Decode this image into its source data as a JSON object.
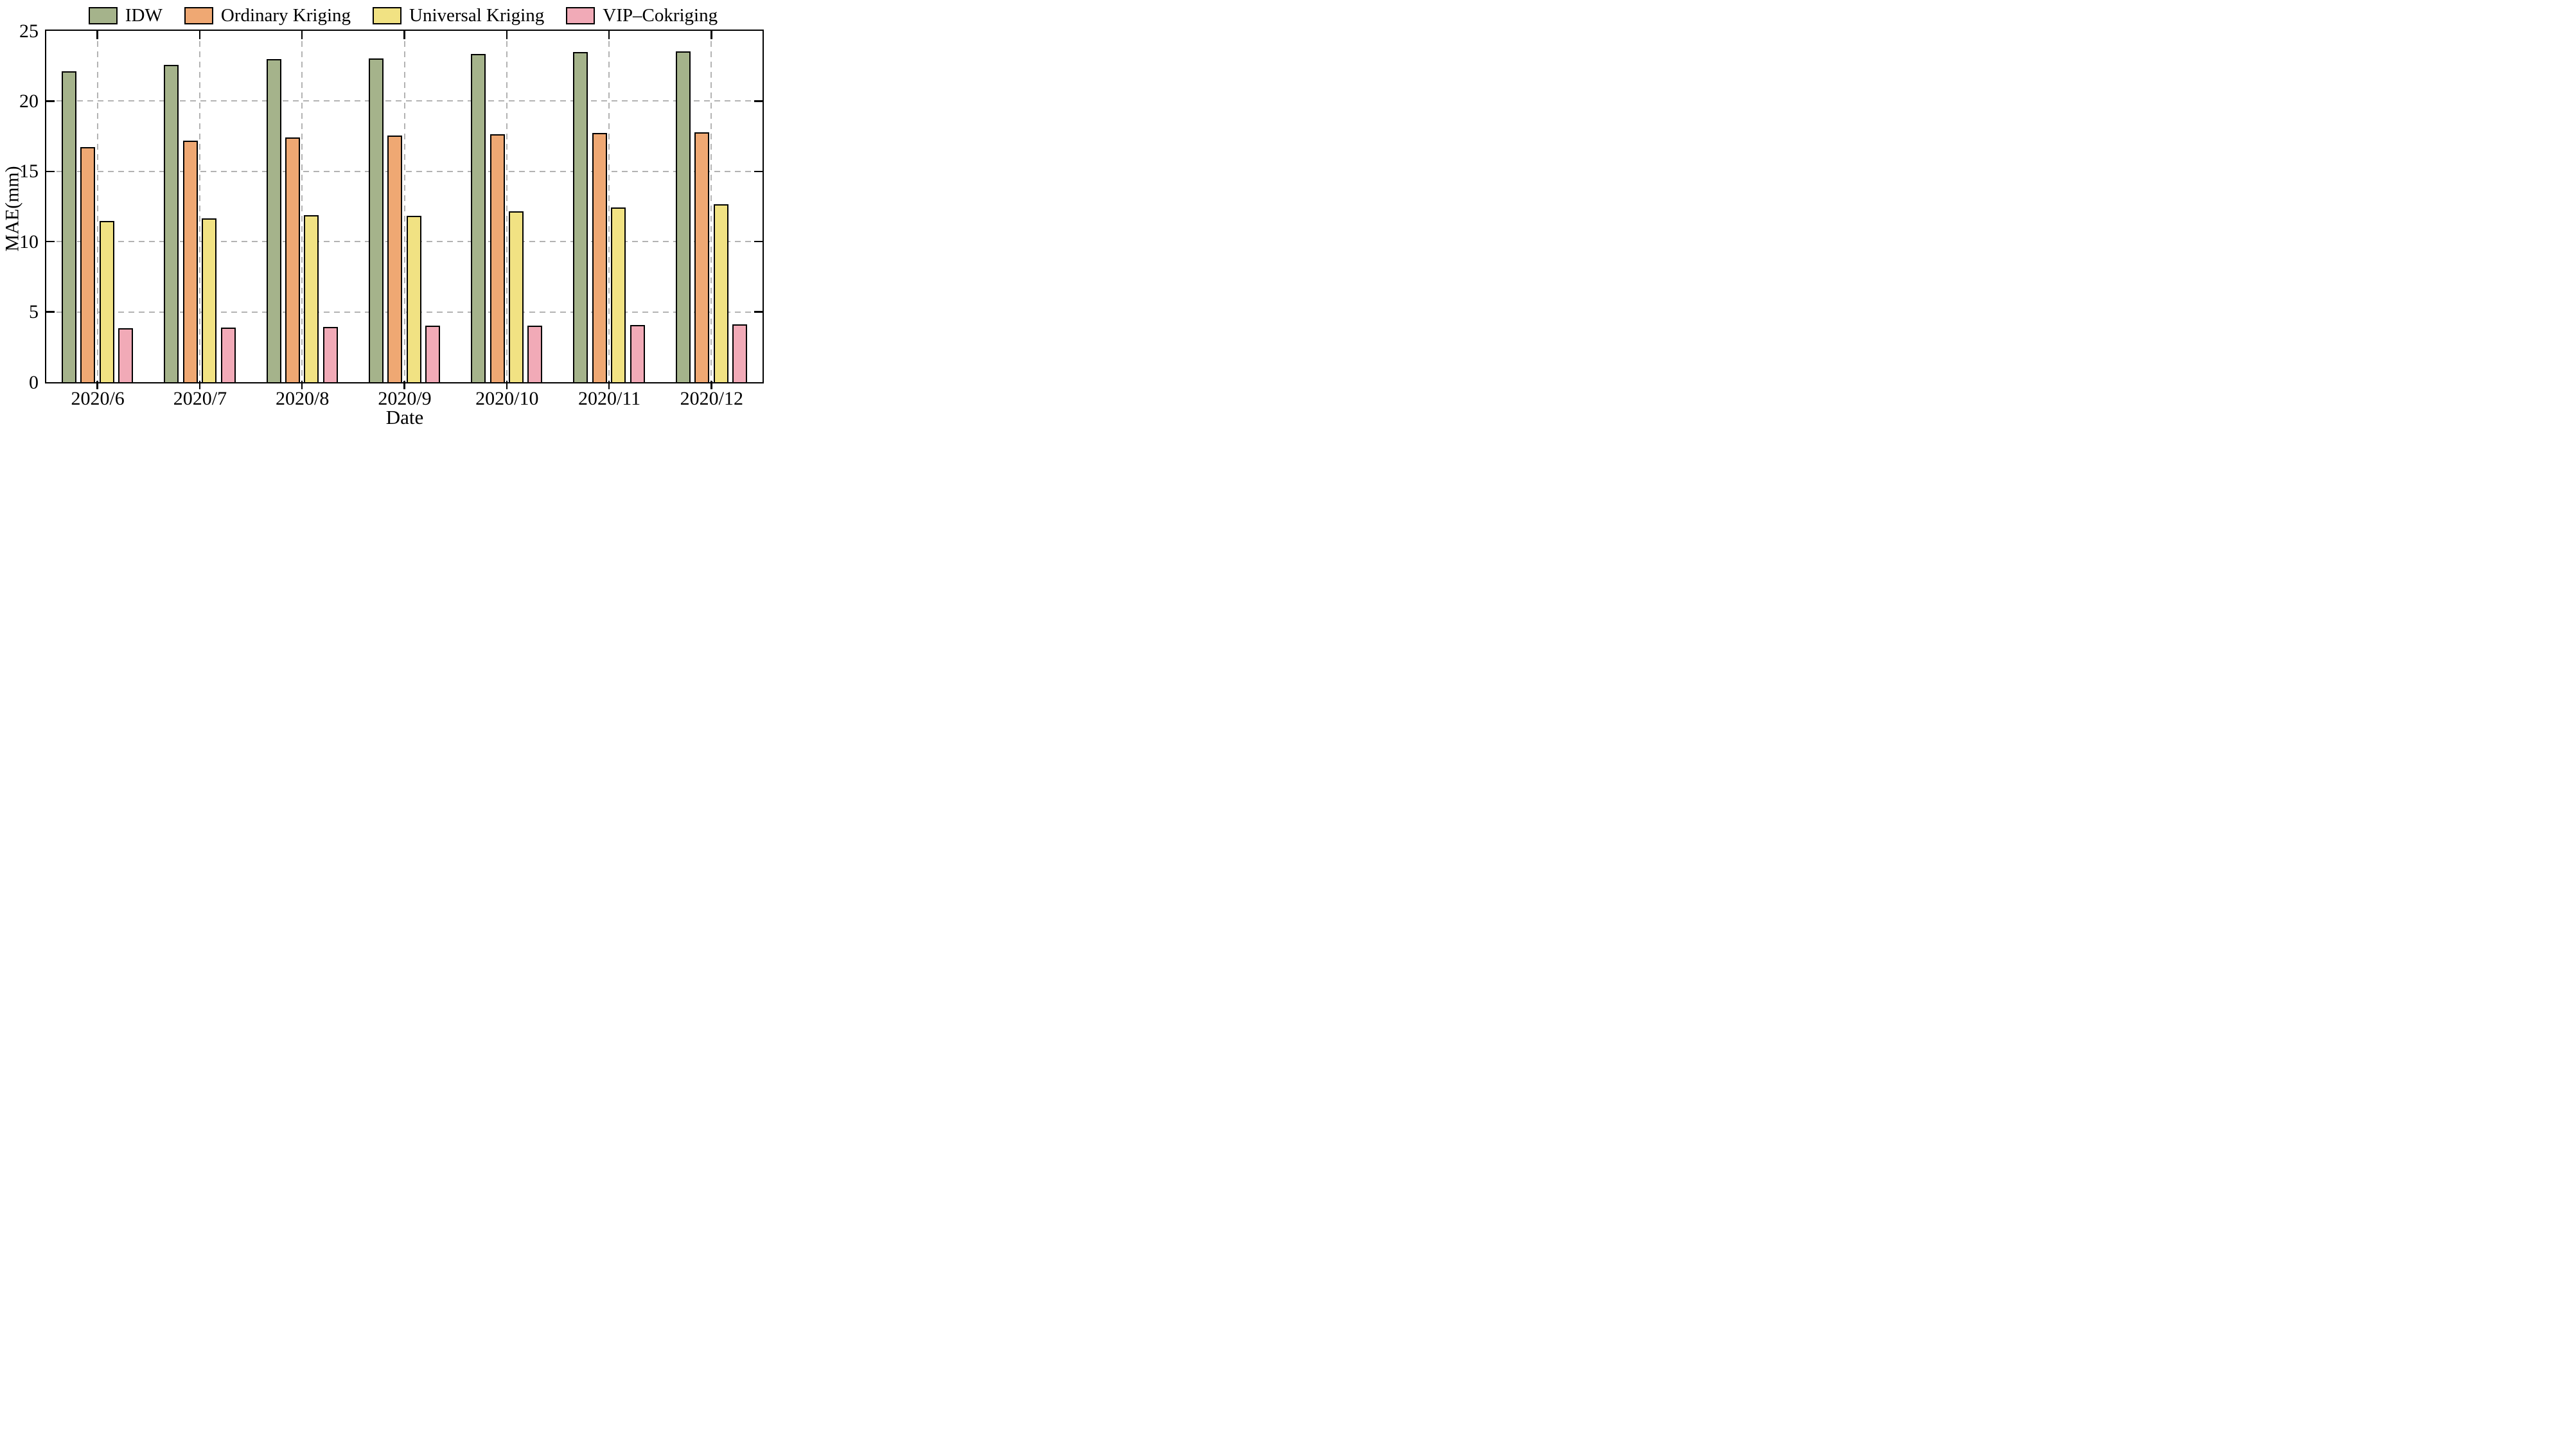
{
  "figure": {
    "background": "#ffffff",
    "text_color": "#000000"
  },
  "chart_data": {
    "type": "bar",
    "title": "",
    "xlabel": "Date",
    "ylabel": "MAE(mm)",
    "ylim": [
      0,
      25
    ],
    "yticks": [
      0,
      5,
      10,
      15,
      20,
      25
    ],
    "grid": "dashed gray horizontal gridlines at yticks and vertical gridlines at each category center",
    "legend_position": "top center, frameless, horizontal row",
    "tick_style": "ticks point inward on top/left/right spines, outward below bottom axis",
    "categories": [
      "2020/6",
      "2020/7",
      "2020/8",
      "2020/9",
      "2020/10",
      "2020/11",
      "2020/12"
    ],
    "series": [
      {
        "name": "IDW",
        "color": "#a5b38b",
        "values": [
          22.1,
          22.6,
          23.0,
          23.05,
          23.35,
          23.5,
          23.55
        ]
      },
      {
        "name": "Ordinary Kriging",
        "color": "#efa873",
        "values": [
          16.75,
          17.2,
          17.4,
          17.55,
          17.65,
          17.75,
          17.8
        ]
      },
      {
        "name": "Universal Kriging",
        "color": "#f1e283",
        "values": [
          11.45,
          11.65,
          11.9,
          11.85,
          12.15,
          12.45,
          12.65
        ]
      },
      {
        "name": "VIP–Cokriging",
        "color": "#f1aab7",
        "values": [
          3.85,
          3.9,
          3.95,
          4.0,
          4.0,
          4.05,
          4.1
        ]
      }
    ],
    "bar_edge_color": "#000000",
    "gridline_color": "#b3b3b3"
  }
}
